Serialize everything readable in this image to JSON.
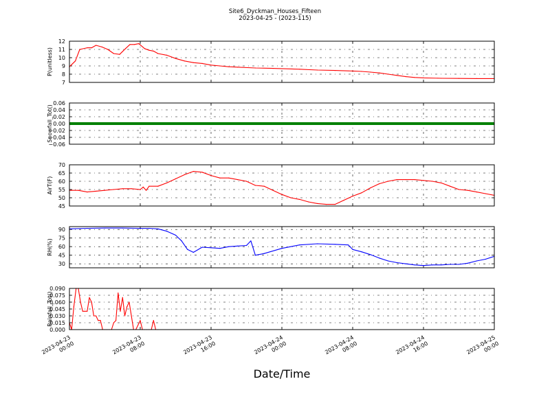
{
  "title": "Site6_Dyckman_Houses_Fifteen",
  "subtitle": "2023-04-25 - (2023-115)",
  "xlabel": "Date/Time",
  "x_ticks": [
    {
      "value": "2023-04-23 00:00",
      "line1": "2023-04-23",
      "line2": "00:00"
    },
    {
      "value": "2023-04-23 08:00",
      "line1": "2023-04-23",
      "line2": "08:00"
    },
    {
      "value": "2023-04-23 16:00",
      "line1": "2023-04-23",
      "line2": "16:00"
    },
    {
      "value": "2023-04-24 00:00",
      "line1": "2023-04-24",
      "line2": "00:00"
    },
    {
      "value": "2023-04-24 08:00",
      "line1": "2023-04-24",
      "line2": "08:00"
    },
    {
      "value": "2023-04-24 16:00",
      "line1": "2023-04-24",
      "line2": "16:00"
    },
    {
      "value": "2023-04-25 00:00",
      "line1": "2023-04-25",
      "line2": "00:00"
    }
  ],
  "colors": {
    "red": "#ff0000",
    "blue": "#0000ff",
    "green": "#008000"
  },
  "chart_data": [
    {
      "type": "line",
      "ylabel": "P(unitless)",
      "ylim": [
        7,
        12
      ],
      "yticks": [
        "7",
        "8",
        "9",
        "10",
        "11",
        "12"
      ],
      "grid": true,
      "series": [
        {
          "color": "red",
          "x": [
            "2023-04-23 00:00",
            "2023-04-23 00:40",
            "2023-04-23 01:10",
            "2023-04-23 02:00",
            "2023-04-23 02:30",
            "2023-04-23 03:00",
            "2023-04-23 03:40",
            "2023-04-23 04:20",
            "2023-04-23 05:00",
            "2023-04-23 05:40",
            "2023-04-23 06:20",
            "2023-04-23 06:50",
            "2023-04-23 07:20",
            "2023-04-23 07:50",
            "2023-04-23 08:30",
            "2023-04-23 09:00",
            "2023-04-23 09:30",
            "2023-04-23 10:00",
            "2023-04-23 11:00",
            "2023-04-23 12:00",
            "2023-04-23 13:00",
            "2023-04-23 14:00",
            "2023-04-23 15:00",
            "2023-04-23 16:00",
            "2023-04-23 17:00",
            "2023-04-23 18:00",
            "2023-04-23 19:00",
            "2023-04-23 21:00",
            "2023-04-23 23:00",
            "2023-04-24 02:00",
            "2023-04-24 04:00",
            "2023-04-24 06:00",
            "2023-04-24 08:00",
            "2023-04-24 09:00",
            "2023-04-24 10:00",
            "2023-04-24 11:00",
            "2023-04-24 12:00",
            "2023-04-24 13:00",
            "2023-04-24 14:00",
            "2023-04-24 15:00",
            "2023-04-24 16:00",
            "2023-04-24 18:00",
            "2023-04-24 20:00",
            "2023-04-24 22:00",
            "2023-04-25 00:00"
          ],
          "y": [
            8.9,
            9.6,
            11.0,
            11.2,
            11.2,
            11.5,
            11.3,
            11.0,
            10.5,
            10.4,
            11.1,
            11.6,
            11.6,
            11.7,
            11.1,
            10.9,
            10.8,
            10.5,
            10.3,
            9.9,
            9.6,
            9.4,
            9.3,
            9.1,
            9.0,
            8.9,
            8.85,
            8.75,
            8.7,
            8.6,
            8.5,
            8.45,
            8.38,
            8.33,
            8.25,
            8.15,
            8.0,
            7.85,
            7.7,
            7.6,
            7.55,
            7.5,
            7.48,
            7.47,
            7.47
          ]
        }
      ]
    },
    {
      "type": "line",
      "ylabel": "Snowfall_Tot()",
      "ylim": [
        -0.06,
        0.06
      ],
      "yticks": [
        "−0.06",
        "−0.04",
        "−0.02",
        "0.00",
        "0.02",
        "0.04",
        "0.06"
      ],
      "grid": true,
      "series": [
        {
          "color": "green",
          "x": [
            "2023-04-23 00:00",
            "2023-04-25 00:00"
          ],
          "y": [
            0.0,
            0.0
          ]
        }
      ]
    },
    {
      "type": "line",
      "ylabel": "AirT(F)",
      "ylim": [
        45,
        70
      ],
      "yticks": [
        "45",
        "50",
        "55",
        "60",
        "65",
        "70"
      ],
      "grid": true,
      "series": [
        {
          "color": "red",
          "x": [
            "2023-04-23 00:00",
            "2023-04-23 01:00",
            "2023-04-23 02:00",
            "2023-04-23 03:00",
            "2023-04-23 04:00",
            "2023-04-23 05:00",
            "2023-04-23 06:00",
            "2023-04-23 07:00",
            "2023-04-23 08:00",
            "2023-04-23 08:20",
            "2023-04-23 08:40",
            "2023-04-23 09:00",
            "2023-04-23 10:00",
            "2023-04-23 11:00",
            "2023-04-23 12:00",
            "2023-04-23 13:00",
            "2023-04-23 14:00",
            "2023-04-23 15:00",
            "2023-04-23 16:00",
            "2023-04-23 17:00",
            "2023-04-23 18:00",
            "2023-04-23 19:00",
            "2023-04-23 20:00",
            "2023-04-23 21:00",
            "2023-04-23 22:00",
            "2023-04-23 23:00",
            "2023-04-24 00:00",
            "2023-04-24 01:00",
            "2023-04-24 02:00",
            "2023-04-24 03:00",
            "2023-04-24 04:00",
            "2023-04-24 05:00",
            "2023-04-24 06:00",
            "2023-04-24 07:00",
            "2023-04-24 08:00",
            "2023-04-24 09:00",
            "2023-04-24 10:00",
            "2023-04-24 11:00",
            "2023-04-24 12:00",
            "2023-04-24 13:00",
            "2023-04-24 14:00",
            "2023-04-24 15:00",
            "2023-04-24 16:00",
            "2023-04-24 17:00",
            "2023-04-24 18:00",
            "2023-04-24 19:00",
            "2023-04-24 20:00",
            "2023-04-24 21:00",
            "2023-04-24 22:00",
            "2023-04-24 23:00",
            "2023-04-25 00:00"
          ],
          "y": [
            54.5,
            54.5,
            53.5,
            54.0,
            54.5,
            55.0,
            55.5,
            55.5,
            55.0,
            56.5,
            54.5,
            57.0,
            57.0,
            59.0,
            61.5,
            64.0,
            66.0,
            65.5,
            63.5,
            62.0,
            62.0,
            61.0,
            60.0,
            57.5,
            57.0,
            54.5,
            52.0,
            50.0,
            49.0,
            47.5,
            46.5,
            46.0,
            46.0,
            48.5,
            51.0,
            53.0,
            56.0,
            58.5,
            60.0,
            61.0,
            61.0,
            61.0,
            60.5,
            60.0,
            59.0,
            57.0,
            55.0,
            54.5,
            53.5,
            52.5,
            51.5
          ]
        }
      ]
    },
    {
      "type": "line",
      "ylabel": "RH(%)",
      "ylim": [
        23,
        95
      ],
      "yticks": [
        "30",
        "45",
        "60",
        "75",
        "90"
      ],
      "grid": true,
      "series": [
        {
          "color": "blue",
          "x": [
            "2023-04-23 00:00",
            "2023-04-23 02:00",
            "2023-04-23 04:00",
            "2023-04-23 06:00",
            "2023-04-23 08:00",
            "2023-04-23 09:00",
            "2023-04-23 10:00",
            "2023-04-23 11:00",
            "2023-04-23 12:00",
            "2023-04-23 12:40",
            "2023-04-23 13:20",
            "2023-04-23 14:00",
            "2023-04-23 15:00",
            "2023-04-23 16:00",
            "2023-04-23 17:00",
            "2023-04-23 18:00",
            "2023-04-23 19:00",
            "2023-04-23 20:00",
            "2023-04-23 20:30",
            "2023-04-23 21:00",
            "2023-04-23 22:00",
            "2023-04-24 00:00",
            "2023-04-24 02:00",
            "2023-04-24 04:00",
            "2023-04-24 06:00",
            "2023-04-24 07:30",
            "2023-04-24 08:00",
            "2023-04-24 09:00",
            "2023-04-24 10:00",
            "2023-04-24 11:00",
            "2023-04-24 12:00",
            "2023-04-24 13:00",
            "2023-04-24 14:00",
            "2023-04-24 15:00",
            "2023-04-24 16:00",
            "2023-04-24 17:00",
            "2023-04-24 18:00",
            "2023-04-24 19:00",
            "2023-04-24 20:00",
            "2023-04-24 21:00",
            "2023-04-24 22:00",
            "2023-04-24 23:00",
            "2023-04-25 00:00"
          ],
          "y": [
            91,
            92,
            92.5,
            92.5,
            92,
            92,
            91,
            87,
            80,
            70,
            55,
            50,
            59,
            58,
            57,
            60,
            61,
            62,
            70,
            45,
            48,
            57,
            63,
            65,
            64,
            63,
            55,
            51,
            46,
            40,
            35,
            32,
            30,
            28,
            27,
            28,
            28,
            29,
            29,
            31,
            35,
            38,
            43
          ]
        }
      ]
    },
    {
      "type": "line",
      "ylabel": "Rainfall_Tot()",
      "ylim": [
        0,
        0.09
      ],
      "yticks": [
        "0.000",
        "0.015",
        "0.030",
        "0.045",
        "0.060",
        "0.075",
        "0.090"
      ],
      "grid": true,
      "series": [
        {
          "color": "red",
          "x": [
            "2023-04-23 00:00",
            "2023-04-23 00:15",
            "2023-04-23 00:30",
            "2023-04-23 00:45",
            "2023-04-23 01:00",
            "2023-04-23 01:15",
            "2023-04-23 01:30",
            "2023-04-23 01:45",
            "2023-04-23 02:00",
            "2023-04-23 02:15",
            "2023-04-23 02:30",
            "2023-04-23 02:45",
            "2023-04-23 03:00",
            "2023-04-23 03:15",
            "2023-04-23 03:30",
            "2023-04-23 03:45",
            "2023-04-23 04:00",
            "2023-04-23 04:15",
            "2023-04-23 04:30",
            "2023-04-23 04:45",
            "2023-04-23 05:00",
            "2023-04-23 05:15",
            "2023-04-23 05:30",
            "2023-04-23 05:45",
            "2023-04-23 06:00",
            "2023-04-23 06:15",
            "2023-04-23 06:30",
            "2023-04-23 06:45",
            "2023-04-23 07:00",
            "2023-04-23 07:15",
            "2023-04-23 07:30",
            "2023-04-23 07:45",
            "2023-04-23 08:00",
            "2023-04-23 08:15",
            "2023-04-23 08:30",
            "2023-04-23 08:45",
            "2023-04-23 09:00",
            "2023-04-23 09:15",
            "2023-04-23 09:30",
            "2023-04-23 09:45",
            "2023-04-23 10:00",
            "2023-04-25 00:00"
          ],
          "y": [
            0.015,
            0.0,
            0.05,
            0.09,
            0.09,
            0.06,
            0.04,
            0.04,
            0.04,
            0.07,
            0.06,
            0.03,
            0.03,
            0.02,
            0.02,
            0.0,
            0.0,
            0.0,
            0.0,
            0.0,
            0.015,
            0.02,
            0.08,
            0.04,
            0.07,
            0.03,
            0.05,
            0.06,
            0.03,
            0.0,
            0.0,
            0.01,
            0.02,
            0.0,
            0.0,
            0.0,
            0.0,
            0.0,
            0.02,
            0.0,
            0.0,
            0.0
          ]
        }
      ]
    }
  ]
}
